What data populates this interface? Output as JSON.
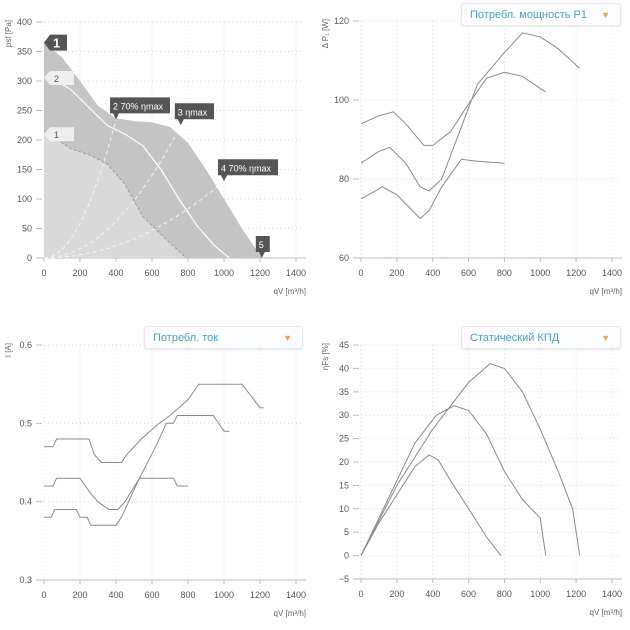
{
  "colors": {
    "grid": "#d8dde2",
    "axis": "#b5bcc4",
    "tick": "#555",
    "curve": "#8a8a8a",
    "area_outer": "#c4c4c4",
    "area_inner": "#d9d9d9",
    "area_bg": "#e9e9e9",
    "marker": "#555"
  },
  "x_label": "qV [m³/h]",
  "chart_data": [
    {
      "id": "pressure",
      "type": "area",
      "ylabel": "psf [Pa]",
      "xlim": [
        0,
        1400
      ],
      "ylim": [
        0,
        400
      ],
      "xticks": [
        0,
        200,
        400,
        600,
        800,
        1000,
        1200,
        1400
      ],
      "yticks": [
        0,
        50,
        100,
        150,
        200,
        250,
        300,
        350,
        400
      ],
      "outer": [
        [
          0,
          365
        ],
        [
          100,
          340
        ],
        [
          200,
          300
        ],
        [
          300,
          258
        ],
        [
          400,
          237
        ],
        [
          500,
          232
        ],
        [
          600,
          230
        ],
        [
          700,
          222
        ],
        [
          800,
          195
        ],
        [
          900,
          150
        ],
        [
          1000,
          100
        ],
        [
          1100,
          50
        ],
        [
          1210,
          0
        ]
      ],
      "inner": [
        [
          0,
          215
        ],
        [
          50,
          205
        ],
        [
          150,
          185
        ],
        [
          250,
          175
        ],
        [
          350,
          160
        ],
        [
          450,
          125
        ],
        [
          550,
          70
        ],
        [
          650,
          40
        ],
        [
          790,
          0
        ]
      ],
      "speed2": [
        [
          50,
          305
        ],
        [
          150,
          285
        ],
        [
          250,
          255
        ],
        [
          350,
          225
        ],
        [
          450,
          210
        ],
        [
          550,
          190
        ],
        [
          650,
          150
        ],
        [
          750,
          100
        ],
        [
          850,
          55
        ],
        [
          950,
          20
        ],
        [
          1030,
          0
        ]
      ],
      "system_lines": [
        {
          "x": 400,
          "y": 235
        },
        {
          "x": 760,
          "y": 225
        },
        {
          "x": 1000,
          "y": 130
        }
      ],
      "markers": [
        {
          "text": "1",
          "x": 0,
          "y": 365
        },
        {
          "text": "2 70% ηmax",
          "x": 400,
          "y": 235
        },
        {
          "text": "3 ηmax",
          "x": 760,
          "y": 225
        },
        {
          "text": "4 70% ηmax",
          "x": 1000,
          "y": 130
        },
        {
          "text": "5",
          "x": 1210,
          "y": 0
        }
      ],
      "speed_labels": [
        {
          "text": "2",
          "y": 305
        },
        {
          "text": "1",
          "y": 210
        }
      ]
    },
    {
      "id": "power",
      "type": "line",
      "ylabel": "Δ P₁ [W]",
      "xlim": [
        0,
        1400
      ],
      "ylim": [
        60,
        120
      ],
      "xticks": [
        0,
        200,
        400,
        600,
        800,
        1000,
        1200,
        1400
      ],
      "yticks": [
        60,
        80,
        100,
        120
      ],
      "series": [
        [
          [
            0,
            94
          ],
          [
            100,
            96
          ],
          [
            180,
            97
          ],
          [
            250,
            94
          ],
          [
            350,
            88.5
          ],
          [
            400,
            88.5
          ],
          [
            500,
            92
          ],
          [
            600,
            99
          ],
          [
            700,
            105.5
          ],
          [
            800,
            107
          ],
          [
            900,
            106
          ],
          [
            1030,
            102
          ]
        ],
        [
          [
            0,
            84
          ],
          [
            100,
            87
          ],
          [
            160,
            88
          ],
          [
            250,
            84
          ],
          [
            330,
            78
          ],
          [
            380,
            77
          ],
          [
            450,
            80
          ],
          [
            550,
            92
          ],
          [
            650,
            104
          ],
          [
            800,
            112
          ],
          [
            900,
            117
          ],
          [
            1000,
            116
          ],
          [
            1100,
            113
          ],
          [
            1220,
            108
          ]
        ],
        [
          [
            0,
            75
          ],
          [
            120,
            78
          ],
          [
            200,
            76
          ],
          [
            330,
            70
          ],
          [
            380,
            72
          ],
          [
            450,
            78
          ],
          [
            560,
            85
          ],
          [
            650,
            84.5
          ],
          [
            800,
            84
          ]
        ]
      ]
    },
    {
      "id": "current",
      "type": "line",
      "ylabel": "I [A]",
      "xlim": [
        0,
        1400
      ],
      "ylim": [
        0.3,
        0.6
      ],
      "xticks": [
        0,
        200,
        400,
        600,
        800,
        1000,
        1200,
        1400
      ],
      "yticks": [
        0.3,
        0.4,
        0.5,
        0.6
      ],
      "series": [
        [
          [
            0,
            0.47
          ],
          [
            50,
            0.47
          ],
          [
            70,
            0.48
          ],
          [
            250,
            0.48
          ],
          [
            280,
            0.46
          ],
          [
            320,
            0.45
          ],
          [
            430,
            0.45
          ],
          [
            460,
            0.46
          ],
          [
            540,
            0.48
          ],
          [
            640,
            0.5
          ],
          [
            700,
            0.51
          ],
          [
            800,
            0.53
          ],
          [
            860,
            0.55
          ],
          [
            1100,
            0.55
          ],
          [
            1200,
            0.52
          ],
          [
            1220,
            0.52
          ]
        ],
        [
          [
            0,
            0.42
          ],
          [
            50,
            0.42
          ],
          [
            70,
            0.43
          ],
          [
            200,
            0.43
          ],
          [
            260,
            0.41
          ],
          [
            300,
            0.4
          ],
          [
            360,
            0.39
          ],
          [
            410,
            0.39
          ],
          [
            450,
            0.4
          ],
          [
            530,
            0.43
          ],
          [
            620,
            0.47
          ],
          [
            680,
            0.5
          ],
          [
            720,
            0.5
          ],
          [
            740,
            0.51
          ],
          [
            940,
            0.51
          ],
          [
            1000,
            0.49
          ],
          [
            1030,
            0.49
          ]
        ],
        [
          [
            0,
            0.38
          ],
          [
            40,
            0.38
          ],
          [
            60,
            0.39
          ],
          [
            180,
            0.39
          ],
          [
            200,
            0.38
          ],
          [
            240,
            0.38
          ],
          [
            260,
            0.37
          ],
          [
            400,
            0.37
          ],
          [
            430,
            0.38
          ],
          [
            470,
            0.4
          ],
          [
            530,
            0.43
          ],
          [
            720,
            0.43
          ],
          [
            740,
            0.42
          ],
          [
            800,
            0.42
          ]
        ]
      ]
    },
    {
      "id": "efficiency",
      "type": "line",
      "ylabel": "ηFs [%]",
      "xlim": [
        0,
        1400
      ],
      "ylim": [
        -5,
        45
      ],
      "xticks": [
        0,
        200,
        400,
        600,
        800,
        1000,
        1200,
        1400
      ],
      "yticks": [
        -5,
        0,
        5,
        10,
        15,
        20,
        25,
        30,
        35,
        40,
        45
      ],
      "series": [
        [
          [
            0,
            0
          ],
          [
            100,
            7
          ],
          [
            200,
            13
          ],
          [
            300,
            19
          ],
          [
            380,
            21.5
          ],
          [
            430,
            20.5
          ],
          [
            500,
            16
          ],
          [
            600,
            10
          ],
          [
            700,
            4
          ],
          [
            780,
            0
          ]
        ],
        [
          [
            0,
            0
          ],
          [
            150,
            12
          ],
          [
            300,
            24
          ],
          [
            420,
            30
          ],
          [
            520,
            32
          ],
          [
            600,
            31
          ],
          [
            700,
            26
          ],
          [
            800,
            18
          ],
          [
            900,
            12
          ],
          [
            1000,
            8
          ],
          [
            1030,
            0
          ]
        ],
        [
          [
            0,
            0
          ],
          [
            200,
            15
          ],
          [
            400,
            27
          ],
          [
            600,
            37
          ],
          [
            720,
            41
          ],
          [
            800,
            40
          ],
          [
            900,
            35
          ],
          [
            1000,
            27
          ],
          [
            1100,
            18
          ],
          [
            1180,
            10
          ],
          [
            1220,
            0
          ]
        ]
      ]
    }
  ],
  "dropdowns": {
    "power": "Потребл. мощность P1",
    "current": "Потребл. ток",
    "efficiency": "Статический КПД"
  }
}
